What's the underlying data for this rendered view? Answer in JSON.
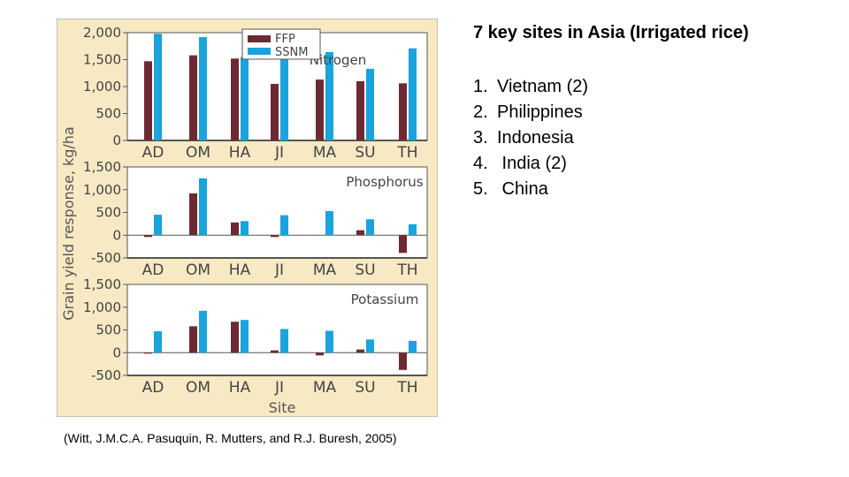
{
  "slide": {
    "title": "7 key sites in Asia (Irrigated rice)",
    "sites": [
      {
        "num": "1.",
        "name": "Vietnam (2)"
      },
      {
        "num": "2.",
        "name": "Philippines"
      },
      {
        "num": "3.",
        "name": "Indonesia"
      },
      {
        "num": "4.",
        "name": " India (2)"
      },
      {
        "num": "5.",
        "name": " China"
      }
    ],
    "citation": "(Witt, J.M.C.A. Pasuquin, R. Mutters, and R.J. Buresh, 2005)"
  },
  "colors": {
    "figure_bg": "#f6e9c3",
    "plot_bg": "#ffffff",
    "ffp": "#6e2a32",
    "ssnm": "#1aa3dc",
    "axis": "#555555"
  },
  "chart_data": [
    {
      "type": "bar",
      "title": "Nitrogen",
      "categories": [
        "AD",
        "OM",
        "HA",
        "JI",
        "MA",
        "SU",
        "TH"
      ],
      "series": [
        {
          "name": "FFP",
          "values": [
            1470,
            1580,
            1520,
            1050,
            1130,
            1100,
            1060
          ]
        },
        {
          "name": "SSNM",
          "values": [
            1980,
            1920,
            1550,
            1510,
            1640,
            1330,
            1710
          ]
        }
      ],
      "ylim": [
        0,
        2000
      ],
      "yticks": [
        0,
        500,
        1000,
        1500,
        2000
      ],
      "ytick_labels": [
        "0",
        "500",
        "1,000",
        "1,500",
        "2,000"
      ],
      "legend": "top-left"
    },
    {
      "type": "bar",
      "title": "Phosphorus",
      "categories": [
        "AD",
        "OM",
        "HA",
        "JI",
        "MA",
        "SU",
        "TH"
      ],
      "series": [
        {
          "name": "FFP",
          "values": [
            -40,
            920,
            280,
            -40,
            0,
            110,
            -390
          ]
        },
        {
          "name": "SSNM",
          "values": [
            450,
            1250,
            310,
            440,
            530,
            350,
            240
          ]
        }
      ],
      "ylim": [
        -500,
        1500
      ],
      "yticks": [
        -500,
        0,
        500,
        1000,
        1500
      ],
      "ytick_labels": [
        "-500",
        "0",
        "500",
        "1,000",
        "1,500"
      ]
    },
    {
      "type": "bar",
      "title": "Potassium",
      "categories": [
        "AD",
        "OM",
        "HA",
        "JI",
        "MA",
        "SU",
        "TH"
      ],
      "series": [
        {
          "name": "FFP",
          "values": [
            -20,
            580,
            680,
            50,
            -60,
            70,
            -380
          ]
        },
        {
          "name": "SSNM",
          "values": [
            470,
            920,
            720,
            520,
            480,
            290,
            260
          ]
        }
      ],
      "ylim": [
        -500,
        1500
      ],
      "yticks": [
        -500,
        0,
        500,
        1000,
        1500
      ],
      "ytick_labels": [
        "-500",
        "0",
        "500",
        "1,000",
        "1,500"
      ]
    }
  ],
  "axes": {
    "ylabel": "Grain yield response, kg/ha",
    "xlabel": "Site"
  }
}
